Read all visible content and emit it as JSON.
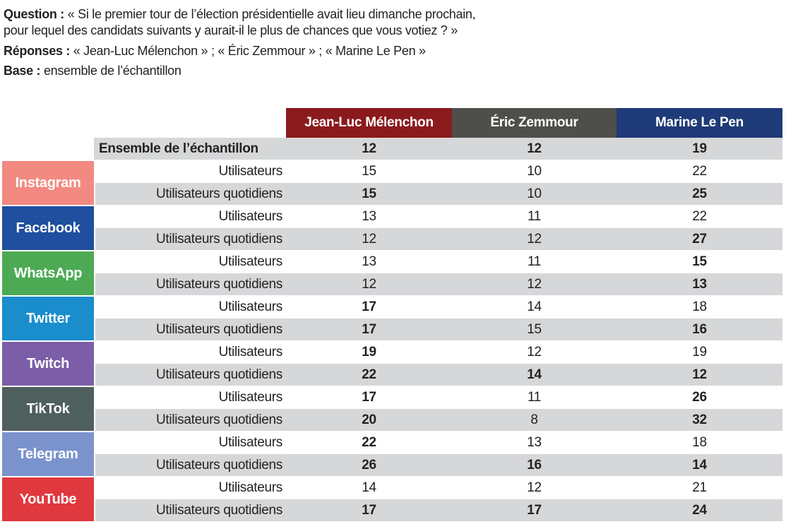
{
  "header": {
    "question_label": "Question :",
    "question_lines": [
      "« Si le premier tour de l’élection présidentielle avait lieu dimanche prochain,",
      "pour lequel des candidats suivants y aurait-il le plus de chances que vous votiez ? »"
    ],
    "responses_label": "Réponses :",
    "responses": "« Jean-Luc Mélenchon » ; « Éric Zemmour » ; « Marine Le Pen »",
    "base_label": "Base :",
    "base": "ensemble de l’échantillon"
  },
  "table": {
    "columns": [
      {
        "name": "Jean-Luc Mélenchon",
        "color": "#8b1a1d"
      },
      {
        "name": "Éric Zemmour",
        "color": "#4e4f4a"
      },
      {
        "name": "Marine Le Pen",
        "color": "#1f3a78"
      }
    ],
    "total": {
      "label": "Ensemble de l’échantillon",
      "values": [
        12,
        12,
        19
      ],
      "bold": [
        true,
        true,
        true
      ]
    },
    "groups": [
      {
        "platform": "Instagram",
        "color": "#f28a82",
        "rows": [
          {
            "label": "Utilisateurs",
            "values": [
              15,
              10,
              22
            ],
            "bold": [
              false,
              false,
              false
            ]
          },
          {
            "label": "Utilisateurs quotidiens",
            "values": [
              15,
              10,
              25
            ],
            "bold": [
              true,
              false,
              true
            ]
          }
        ]
      },
      {
        "platform": "Facebook",
        "color": "#1f4f9e",
        "rows": [
          {
            "label": "Utilisateurs",
            "values": [
              13,
              11,
              22
            ],
            "bold": [
              false,
              false,
              false
            ]
          },
          {
            "label": "Utilisateurs quotidiens",
            "values": [
              12,
              12,
              27
            ],
            "bold": [
              false,
              false,
              true
            ]
          }
        ]
      },
      {
        "platform": "WhatsApp",
        "color": "#4caa55",
        "rows": [
          {
            "label": "Utilisateurs",
            "values": [
              13,
              11,
              15
            ],
            "bold": [
              false,
              false,
              true
            ]
          },
          {
            "label": "Utilisateurs quotidiens",
            "values": [
              12,
              12,
              13
            ],
            "bold": [
              false,
              false,
              true
            ]
          }
        ]
      },
      {
        "platform": "Twitter",
        "color": "#1a8dcc",
        "rows": [
          {
            "label": "Utilisateurs",
            "values": [
              17,
              14,
              18
            ],
            "bold": [
              true,
              false,
              false
            ]
          },
          {
            "label": "Utilisateurs quotidiens",
            "values": [
              17,
              15,
              16
            ],
            "bold": [
              true,
              false,
              true
            ]
          }
        ]
      },
      {
        "platform": "Twitch",
        "color": "#7c5ea8",
        "rows": [
          {
            "label": "Utilisateurs",
            "values": [
              19,
              12,
              19
            ],
            "bold": [
              true,
              false,
              false
            ]
          },
          {
            "label": "Utilisateurs quotidiens",
            "values": [
              22,
              14,
              12
            ],
            "bold": [
              true,
              true,
              true
            ]
          }
        ]
      },
      {
        "platform": "TikTok",
        "color": "#4e5f5d",
        "rows": [
          {
            "label": "Utilisateurs",
            "values": [
              17,
              11,
              26
            ],
            "bold": [
              true,
              false,
              true
            ]
          },
          {
            "label": "Utilisateurs quotidiens",
            "values": [
              20,
              8,
              32
            ],
            "bold": [
              true,
              false,
              true
            ]
          }
        ]
      },
      {
        "platform": "Telegram",
        "color": "#7b93cd",
        "rows": [
          {
            "label": "Utilisateurs",
            "values": [
              22,
              13,
              18
            ],
            "bold": [
              true,
              false,
              false
            ]
          },
          {
            "label": "Utilisateurs quotidiens",
            "values": [
              26,
              16,
              14
            ],
            "bold": [
              true,
              true,
              true
            ]
          }
        ]
      },
      {
        "platform": "YouTube",
        "color": "#e0383f",
        "rows": [
          {
            "label": "Utilisateurs",
            "values": [
              14,
              12,
              21
            ],
            "bold": [
              false,
              false,
              false
            ]
          },
          {
            "label": "Utilisateurs quotidiens",
            "values": [
              17,
              17,
              24
            ],
            "bold": [
              true,
              true,
              true
            ]
          }
        ]
      }
    ]
  }
}
